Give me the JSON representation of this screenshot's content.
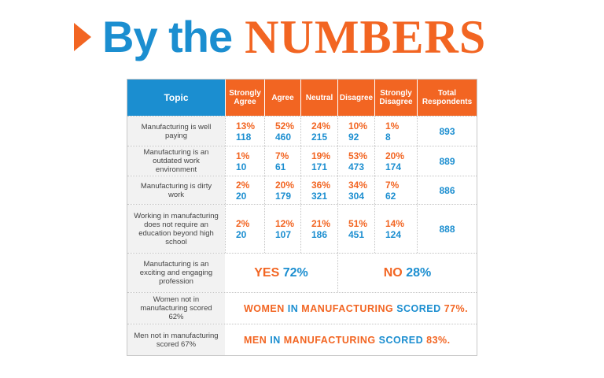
{
  "header": {
    "by_the": "By the",
    "numbers": "NUMBERS"
  },
  "table": {
    "columns": [
      "Topic",
      "Strongly Agree",
      "Agree",
      "Neutral",
      "Disagree",
      "Strongly Disagree",
      "Total Respondents"
    ],
    "rows": [
      {
        "topic": "Manufacturing is well paying",
        "cells": [
          [
            "13%",
            "118"
          ],
          [
            "52%",
            "460"
          ],
          [
            "24%",
            "215"
          ],
          [
            "10%",
            "92"
          ],
          [
            "1%",
            "8"
          ]
        ],
        "total": "893"
      },
      {
        "topic": "Manufacturing is an outdated work environment",
        "cells": [
          [
            "1%",
            "10"
          ],
          [
            "7%",
            "61"
          ],
          [
            "19%",
            "171"
          ],
          [
            "53%",
            "473"
          ],
          [
            "20%",
            "174"
          ]
        ],
        "total": "889"
      },
      {
        "topic": "Manufacturing is dirty work",
        "cells": [
          [
            "2%",
            "20"
          ],
          [
            "20%",
            "179"
          ],
          [
            "36%",
            "321"
          ],
          [
            "34%",
            "304"
          ],
          [
            "7%",
            "62"
          ]
        ],
        "total": "886"
      },
      {
        "topic": "Working in manufacturing does not require an education beyond high school",
        "cells": [
          [
            "2%",
            "20"
          ],
          [
            "12%",
            "107"
          ],
          [
            "21%",
            "186"
          ],
          [
            "51%",
            "451"
          ],
          [
            "14%",
            "124"
          ]
        ],
        "total": "888"
      }
    ],
    "exciting": {
      "topic": "Manufacturing is an exciting and engaging profession",
      "yes_label": "YES",
      "yes_value": "72%",
      "no_label": "NO",
      "no_value": "28%"
    },
    "women": {
      "topic": "Women not in manufacturing scored 62%",
      "w1": "WOMEN",
      "w2": "IN",
      "w3": "MANUFACTURING",
      "w4": "SCORED",
      "w5": "77%."
    },
    "men": {
      "topic": "Men not in manufacturing scored 67%",
      "w1": "MEN",
      "w2": "IN",
      "w3": "MANUFACTURING",
      "w4": "SCORED",
      "w5": "83%."
    }
  },
  "colors": {
    "orange": "#f26522",
    "blue": "#1b8ed0"
  }
}
